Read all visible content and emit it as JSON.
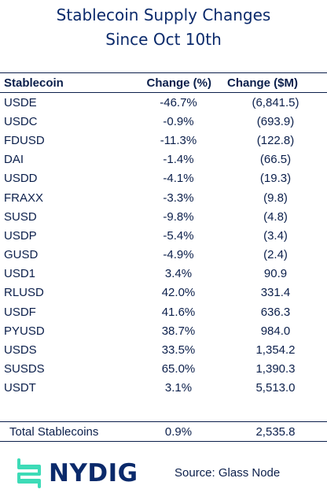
{
  "title": {
    "line1": "Stablecoin Supply Changes",
    "line2": "Since Oct 10th"
  },
  "table": {
    "headers": [
      "Stablecoin",
      "Change (%)",
      "Change ($M)"
    ],
    "rows": [
      [
        "USDE",
        "-46.7%",
        "(6,841.5)"
      ],
      [
        "USDC",
        "-0.9%",
        "(693.9)"
      ],
      [
        "FDUSD",
        "-11.3%",
        "(122.8)"
      ],
      [
        "DAI",
        "-1.4%",
        "(66.5)"
      ],
      [
        "USDD",
        "-4.1%",
        "(19.3)"
      ],
      [
        "FRAXX",
        "-3.3%",
        "(9.8)"
      ],
      [
        "SUSD",
        "-9.8%",
        "(4.8)"
      ],
      [
        "USDP",
        "-5.4%",
        "(3.4)"
      ],
      [
        "GUSD",
        "-4.9%",
        "(2.4)"
      ],
      [
        "USD1",
        "3.4%",
        "90.9"
      ],
      [
        "RLUSD",
        "42.0%",
        "331.4"
      ],
      [
        "USDF",
        "41.6%",
        "636.3"
      ],
      [
        "PYUSD",
        "38.7%",
        "984.0"
      ],
      [
        "USDS",
        "33.5%",
        "1,354.2"
      ],
      [
        "SUSDS",
        "65.0%",
        "1,390.3"
      ],
      [
        "USDT",
        "3.1%",
        "5,513.0"
      ]
    ],
    "total": [
      "Total Stablecoins",
      "0.9%",
      "2,535.8"
    ]
  },
  "footer": {
    "logo_text": "NYDIG",
    "logo_icon": "nydig-logo-mark",
    "source": "Source: Glass Node"
  },
  "colors": {
    "title": "#0b2a6b",
    "text": "#0b1f4b",
    "logo_accent": "#3ddbb7"
  }
}
